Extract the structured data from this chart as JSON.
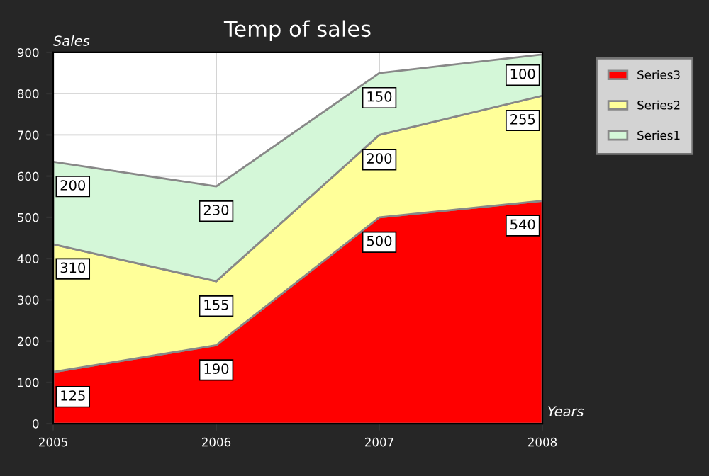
{
  "chart_data": {
    "type": "area",
    "title": "Temp of sales",
    "xlabel": "Years",
    "ylabel": "Sales",
    "categories": [
      "2005",
      "2006",
      "2007",
      "2008"
    ],
    "stacked": true,
    "series": [
      {
        "name": "Series3",
        "color": "#ff0000",
        "values": [
          125,
          190,
          500,
          540
        ]
      },
      {
        "name": "Series2",
        "color": "#ffff99",
        "values": [
          310,
          155,
          200,
          255
        ]
      },
      {
        "name": "Series1",
        "color": "#d4f7d8",
        "values": [
          200,
          230,
          150,
          100
        ]
      }
    ],
    "ylim": [
      0,
      900
    ],
    "yticks": [
      0,
      100,
      200,
      300,
      400,
      500,
      600,
      700,
      800,
      900
    ],
    "grid": true,
    "legend": "top right",
    "data_labels": true
  }
}
